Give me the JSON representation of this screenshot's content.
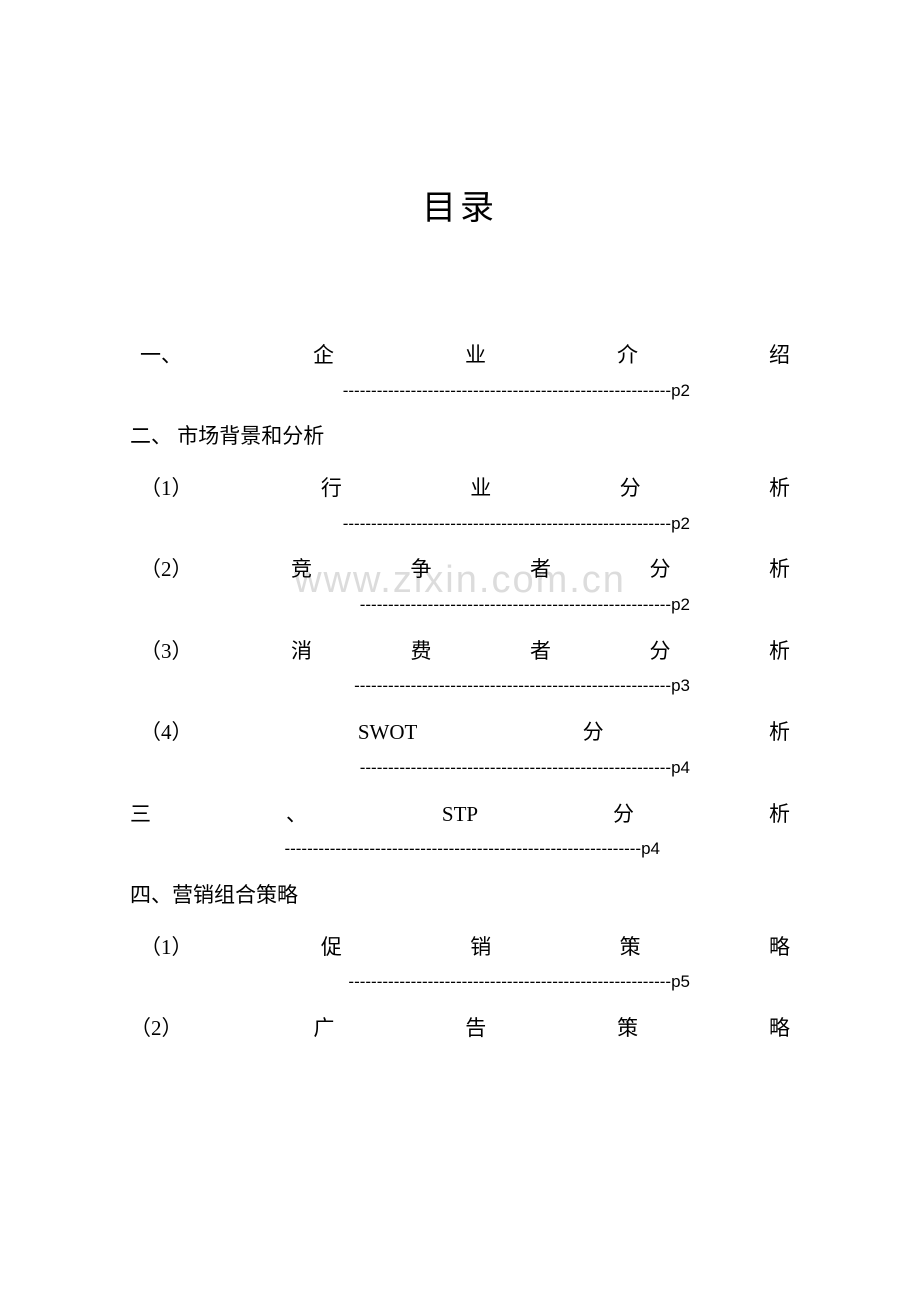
{
  "title": "目录",
  "watermark": "www.zixin.com.cn",
  "entries": [
    {
      "type": "justified",
      "chars": [
        "一、",
        "企",
        "业",
        "介",
        "绍"
      ],
      "dashes": "----------------------------------------------------------p2",
      "dashClass": "dash-line"
    },
    {
      "type": "simple",
      "text": "二、 市场背景和分析"
    },
    {
      "type": "justified",
      "chars": [
        "（1）",
        "行",
        "业",
        "分",
        "析"
      ],
      "dashes": "----------------------------------------------------------p2",
      "dashClass": "dash-line"
    },
    {
      "type": "justified",
      "chars": [
        "（2）",
        "竞",
        "争",
        "者",
        "分",
        "析"
      ],
      "dashes": "-------------------------------------------------------p2",
      "dashClass": "dash-line"
    },
    {
      "type": "justified",
      "chars": [
        "（3）",
        "消",
        "费",
        "者",
        "分",
        "析"
      ],
      "dashes": "--------------------------------------------------------p3",
      "dashClass": "dash-line"
    },
    {
      "type": "justified",
      "chars": [
        "（4）",
        "SWOT",
        "分",
        "析"
      ],
      "dashes": "-------------------------------------------------------p4",
      "dashClass": "dash-line"
    },
    {
      "type": "justified-full",
      "chars": [
        "三",
        "、",
        "STP",
        "分",
        "析"
      ],
      "dashes": "---------------------------------------------------------------p4",
      "dashClass": "dash-line-full"
    },
    {
      "type": "simple",
      "text": "四、营销组合策略"
    },
    {
      "type": "justified",
      "chars": [
        "（1）",
        "促",
        "销",
        "策",
        "略"
      ],
      "dashes": "---------------------------------------------------------p5",
      "dashClass": "dash-line"
    },
    {
      "type": "justified-nodash",
      "chars": [
        "（2）",
        "广",
        "告",
        "策",
        "略"
      ]
    }
  ],
  "colors": {
    "text": "#000000",
    "background": "#ffffff",
    "watermark": "#dcdcdc"
  },
  "typography": {
    "title_fontsize": 34,
    "body_fontsize": 21,
    "dash_fontsize": 17,
    "watermark_fontsize": 38
  }
}
